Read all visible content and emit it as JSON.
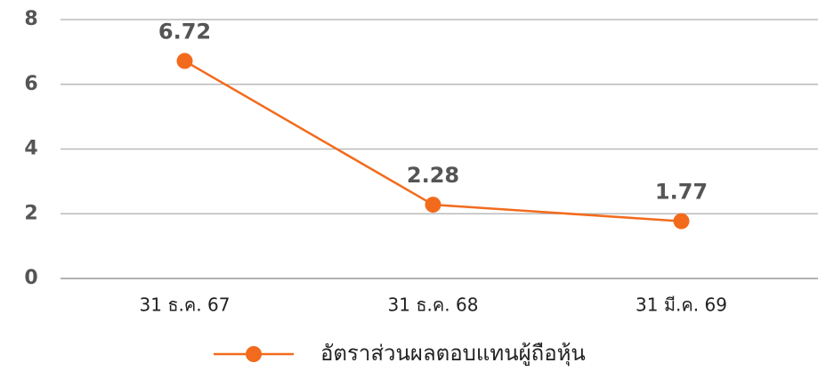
{
  "chart_data": {
    "type": "line",
    "categories": [
      "31 ธ.ค. 67",
      "31 ธ.ค. 68",
      "31 มี.ค. 69"
    ],
    "series": [
      {
        "name": "อัตราส่วนผลตอบแทนผู้ถือหุ้น",
        "color": "#f26b1d",
        "values": [
          6.72,
          2.28,
          1.77
        ]
      }
    ],
    "ylim": [
      0,
      8
    ],
    "yticks": [
      0,
      2,
      4,
      6,
      8
    ],
    "grid": true,
    "legend": "bottom"
  }
}
